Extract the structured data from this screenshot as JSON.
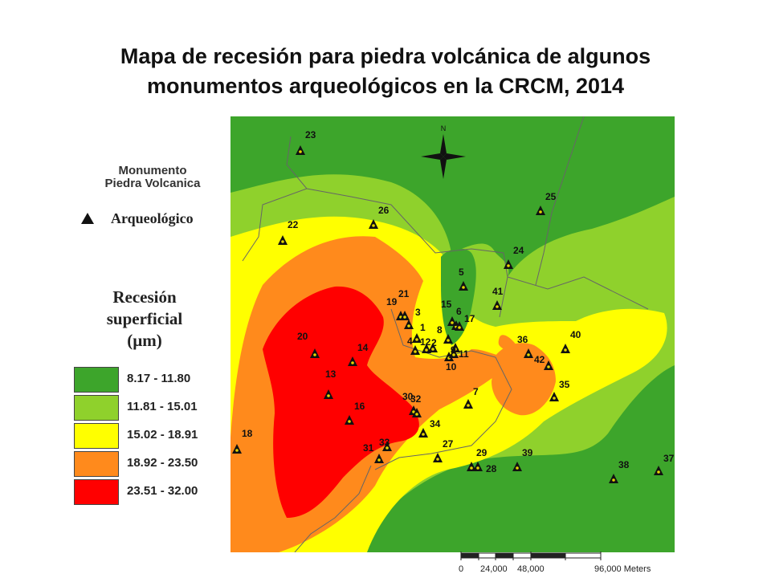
{
  "title": {
    "line1": "Mapa de recesión para piedra volcánica de algunos",
    "line2": "monumentos arqueológicos en la CRCM, 2014"
  },
  "legend": {
    "heading_line1": "Monumento",
    "heading_line2": "Piedra Volcanica",
    "marker_label": "Arqueológico",
    "recession_title": [
      "Recesión",
      "superficial",
      "(µm)"
    ],
    "classes": [
      {
        "range": "8.17 - 11.80",
        "color": "#3da52b"
      },
      {
        "range": "11.81 - 15.01",
        "color": "#8fd12c"
      },
      {
        "range": "15.02 - 18.91",
        "color": "#ffff00"
      },
      {
        "range": "18.92 - 23.50",
        "color": "#ff8a1c"
      },
      {
        "range": "23.51 - 32.00",
        "color": "#ff0000"
      }
    ]
  },
  "map": {
    "north_label": "N",
    "monuments": [
      "1",
      "2",
      "3",
      "4",
      "5",
      "6",
      "7",
      "8",
      "9",
      "10",
      "11",
      "12",
      "13",
      "14",
      "15",
      "16",
      "17",
      "18",
      "19",
      "20",
      "21",
      "22",
      "23",
      "24",
      "25",
      "26",
      "27",
      "28",
      "29",
      "30",
      "31",
      "32",
      "33",
      "34",
      "35",
      "36",
      "37",
      "38",
      "39",
      "40",
      "41",
      "42"
    ]
  },
  "scale_bar": {
    "labels": [
      "0",
      "24,000",
      "48,000",
      "96,000 Meters"
    ]
  }
}
